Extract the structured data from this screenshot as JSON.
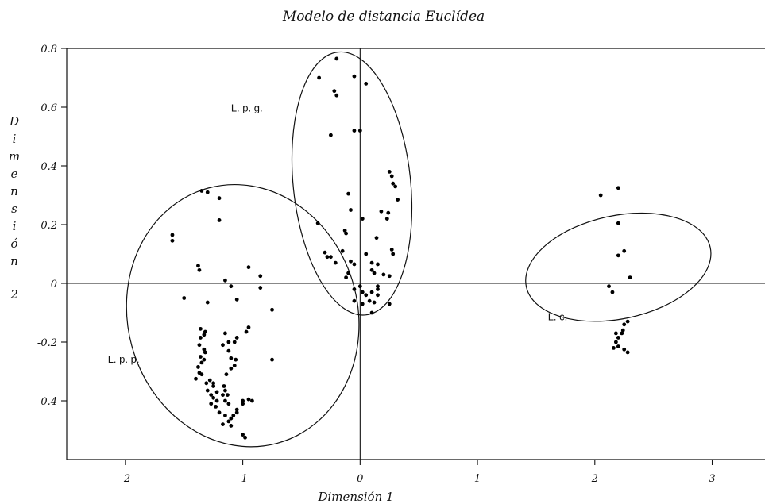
{
  "chart_data": {
    "type": "scatter",
    "title": "Modelo de distancia Euclídea",
    "xlabel": "Dimensión 1",
    "ylabel": "Dimensión 2",
    "xlim": [
      -2.5,
      3.45
    ],
    "ylim": [
      -0.6,
      0.8
    ],
    "x_ticks": [
      -2,
      -1,
      0,
      1,
      2,
      3
    ],
    "x_tick_labels": [
      "-2",
      "-1",
      "0",
      "1",
      "2",
      "3"
    ],
    "y_ticks": [
      0.8,
      0.6,
      0.4,
      0.2,
      0,
      -0.2,
      -0.4
    ],
    "y_tick_labels": [
      "0.8",
      "0.6",
      "0.4",
      "0.2",
      "0",
      "-0.2",
      "-0.4"
    ],
    "grid": false,
    "reference_lines": {
      "x": 0,
      "y": 0
    },
    "annotations": [
      {
        "text": "L. p. g.",
        "x": -1.1,
        "y": 0.585
      },
      {
        "text": "L. p. p.",
        "x": -2.15,
        "y": -0.27
      },
      {
        "text": "L. c.",
        "x": 1.6,
        "y": -0.125
      }
    ],
    "groups": [
      {
        "label": "L. p. p.",
        "ellipse": {
          "cx": -1.0,
          "cy": -0.11,
          "rx": 0.98,
          "ry": 0.45,
          "rotate": -15
        },
        "points": [
          [
            -1.6,
            0.165
          ],
          [
            -1.6,
            0.145
          ],
          [
            -1.5,
            -0.05
          ],
          [
            -1.35,
            0.315
          ],
          [
            -1.3,
            0.31
          ],
          [
            -1.2,
            0.215
          ],
          [
            -1.2,
            0.29
          ],
          [
            -1.38,
            0.06
          ],
          [
            -1.37,
            0.045
          ],
          [
            -1.3,
            -0.065
          ],
          [
            -1.15,
            0.01
          ],
          [
            -1.1,
            -0.01
          ],
          [
            -1.05,
            -0.055
          ],
          [
            -0.95,
            0.055
          ],
          [
            -0.85,
            0.025
          ],
          [
            -0.85,
            -0.015
          ],
          [
            -0.75,
            -0.09
          ],
          [
            -0.95,
            -0.15
          ],
          [
            -0.97,
            -0.165
          ],
          [
            -0.75,
            -0.26
          ],
          [
            -1.36,
            -0.155
          ],
          [
            -1.32,
            -0.165
          ],
          [
            -1.33,
            -0.175
          ],
          [
            -1.36,
            -0.185
          ],
          [
            -1.37,
            -0.21
          ],
          [
            -1.33,
            -0.225
          ],
          [
            -1.32,
            -0.235
          ],
          [
            -1.36,
            -0.25
          ],
          [
            -1.33,
            -0.26
          ],
          [
            -1.35,
            -0.27
          ],
          [
            -1.38,
            -0.285
          ],
          [
            -1.37,
            -0.305
          ],
          [
            -1.35,
            -0.31
          ],
          [
            -1.4,
            -0.325
          ],
          [
            -1.31,
            -0.34
          ],
          [
            -1.25,
            -0.35
          ],
          [
            -1.3,
            -0.365
          ],
          [
            -1.22,
            -0.37
          ],
          [
            -1.27,
            -0.38
          ],
          [
            -1.25,
            -0.39
          ],
          [
            -1.22,
            -0.4
          ],
          [
            -1.27,
            -0.41
          ],
          [
            -1.23,
            -0.42
          ],
          [
            -1.2,
            -0.44
          ],
          [
            -1.28,
            -0.33
          ],
          [
            -1.25,
            -0.34
          ],
          [
            -1.15,
            -0.17
          ],
          [
            -1.12,
            -0.2
          ],
          [
            -1.17,
            -0.21
          ],
          [
            -1.12,
            -0.23
          ],
          [
            -1.05,
            -0.185
          ],
          [
            -1.07,
            -0.2
          ],
          [
            -1.1,
            -0.255
          ],
          [
            -1.06,
            -0.26
          ],
          [
            -1.07,
            -0.28
          ],
          [
            -1.1,
            -0.29
          ],
          [
            -1.14,
            -0.31
          ],
          [
            -1.16,
            -0.35
          ],
          [
            -1.15,
            -0.365
          ],
          [
            -1.17,
            -0.38
          ],
          [
            -1.13,
            -0.38
          ],
          [
            -1.15,
            -0.4
          ],
          [
            -1.12,
            -0.41
          ],
          [
            -1.15,
            -0.45
          ],
          [
            -1.1,
            -0.46
          ],
          [
            -1.12,
            -0.47
          ],
          [
            -1.08,
            -0.45
          ],
          [
            -1.05,
            -0.43
          ],
          [
            -1.05,
            -0.44
          ],
          [
            -1.0,
            -0.4
          ],
          [
            -1.0,
            -0.41
          ],
          [
            -0.95,
            -0.395
          ],
          [
            -0.92,
            -0.4
          ],
          [
            -1.0,
            -0.515
          ],
          [
            -0.98,
            -0.525
          ],
          [
            -1.17,
            -0.48
          ],
          [
            -1.1,
            -0.485
          ]
        ]
      },
      {
        "label": "L. p. g.",
        "ellipse": {
          "cx": -0.07,
          "cy": 0.34,
          "rx": 0.5,
          "ry": 0.45,
          "rotate": -6
        },
        "points": [
          [
            -0.2,
            0.765
          ],
          [
            -0.35,
            0.7
          ],
          [
            -0.05,
            0.705
          ],
          [
            0.05,
            0.68
          ],
          [
            -0.22,
            0.655
          ],
          [
            -0.2,
            0.64
          ],
          [
            -0.05,
            0.52
          ],
          [
            0.0,
            0.52
          ],
          [
            -0.25,
            0.505
          ],
          [
            -0.1,
            0.305
          ],
          [
            -0.08,
            0.25
          ],
          [
            0.02,
            0.22
          ],
          [
            -0.36,
            0.205
          ],
          [
            0.25,
            0.38
          ],
          [
            0.27,
            0.365
          ],
          [
            0.28,
            0.34
          ],
          [
            0.3,
            0.33
          ],
          [
            0.32,
            0.285
          ],
          [
            0.18,
            0.245
          ],
          [
            0.24,
            0.24
          ],
          [
            0.23,
            0.22
          ],
          [
            0.14,
            0.155
          ],
          [
            0.27,
            0.115
          ],
          [
            0.28,
            0.1
          ],
          [
            -0.13,
            0.18
          ],
          [
            -0.12,
            0.17
          ],
          [
            -0.15,
            0.11
          ],
          [
            -0.3,
            0.105
          ],
          [
            -0.28,
            0.09
          ],
          [
            -0.25,
            0.09
          ],
          [
            -0.21,
            0.07
          ],
          [
            -0.08,
            0.075
          ],
          [
            -0.05,
            0.065
          ],
          [
            0.05,
            0.1
          ],
          [
            0.1,
            0.07
          ],
          [
            0.15,
            0.065
          ],
          [
            0.2,
            0.03
          ],
          [
            0.25,
            0.025
          ],
          [
            0.1,
            0.045
          ],
          [
            0.12,
            0.035
          ],
          [
            -0.1,
            0.035
          ],
          [
            -0.12,
            0.02
          ],
          [
            0.0,
            -0.01
          ],
          [
            0.02,
            -0.03
          ],
          [
            0.05,
            -0.04
          ],
          [
            0.08,
            -0.06
          ],
          [
            0.12,
            -0.065
          ],
          [
            0.15,
            -0.04
          ],
          [
            -0.05,
            -0.02
          ],
          [
            0.1,
            -0.03
          ],
          [
            0.15,
            -0.02
          ],
          [
            0.02,
            -0.07
          ],
          [
            0.1,
            -0.1
          ],
          [
            0.25,
            -0.07
          ],
          [
            0.15,
            -0.01
          ],
          [
            -0.05,
            -0.06
          ]
        ]
      },
      {
        "label": "L. c.",
        "ellipse": {
          "cx": 2.2,
          "cy": 0.055,
          "rx": 0.44,
          "ry": 0.32,
          "rotate": 78
        },
        "points": [
          [
            2.05,
            0.3
          ],
          [
            2.2,
            0.325
          ],
          [
            2.2,
            0.205
          ],
          [
            2.25,
            0.11
          ],
          [
            2.2,
            0.095
          ],
          [
            2.3,
            0.02
          ],
          [
            2.12,
            -0.01
          ],
          [
            2.15,
            -0.03
          ],
          [
            2.28,
            -0.13
          ],
          [
            2.25,
            -0.14
          ],
          [
            2.24,
            -0.16
          ],
          [
            2.18,
            -0.17
          ],
          [
            2.23,
            -0.17
          ],
          [
            2.2,
            -0.185
          ],
          [
            2.18,
            -0.2
          ],
          [
            2.2,
            -0.215
          ],
          [
            2.16,
            -0.22
          ],
          [
            2.25,
            -0.225
          ],
          [
            2.28,
            -0.235
          ]
        ]
      }
    ]
  }
}
